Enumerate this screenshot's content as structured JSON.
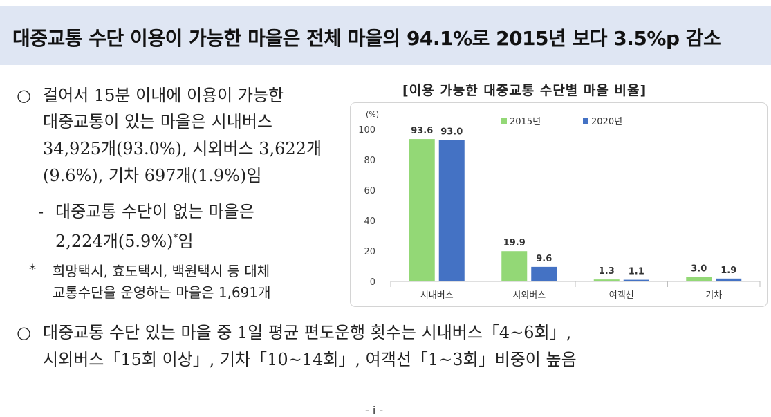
{
  "banner": {
    "title": "대중교통 수단 이용이 가능한 마을은 전체 마을의 94.1%로 2015년 보다 3.5%p 감소"
  },
  "left_text": {
    "bullet": "○",
    "lines": [
      "걸어서 15분 이내에 이용이 가능한",
      "대중교통이 있는 마을은 시내버스",
      "34,925개(93.0%), 시외버스 3,622개",
      "(9.6%), 기차 697개(1.9%)임"
    ],
    "sub_dash": "-",
    "sub_lines": [
      "대중교통 수단이 없는 마을은",
      "2,224개(5.9%)",
      "임"
    ],
    "sup": "*",
    "note_star": "*",
    "note_lines": [
      "희망택시, 효도택시, 백원택시 등 대체",
      "교통수단을 운영하는 마을은 1,691개"
    ]
  },
  "bottom_text": {
    "bullet": "○",
    "lines": [
      "대중교통 수단 있는 마을 중 1일 평균 편도운행 횟수는 시내버스「4~6회」,",
      "시외버스「15회 이상」, 기차「10~14회」, 여객선「1~3회」비중이 높음"
    ]
  },
  "footer": {
    "page": "- i -"
  },
  "chart_data": {
    "type": "bar",
    "title": "[이용 가능한 대중교통 수단별 마을 비율]",
    "unit_label": "(%)",
    "categories": [
      "시내버스",
      "시외버스",
      "여객선",
      "기차"
    ],
    "series": [
      {
        "name": "2015년",
        "values": [
          93.6,
          19.9,
          1.3,
          3.0
        ],
        "labels": [
          "93.6",
          "19.9",
          "1.3",
          "3.0"
        ],
        "color": "#93d876"
      },
      {
        "name": "2020년",
        "values": [
          93.0,
          9.6,
          1.1,
          1.9
        ],
        "labels": [
          "93.0",
          "9.6",
          "1.1",
          "1.9"
        ],
        "color": "#4472c4"
      }
    ],
    "yticks": [
      "0",
      "20",
      "40",
      "60",
      "80",
      "100"
    ],
    "ylim": [
      0,
      100
    ],
    "grid": false,
    "legend": "top"
  }
}
